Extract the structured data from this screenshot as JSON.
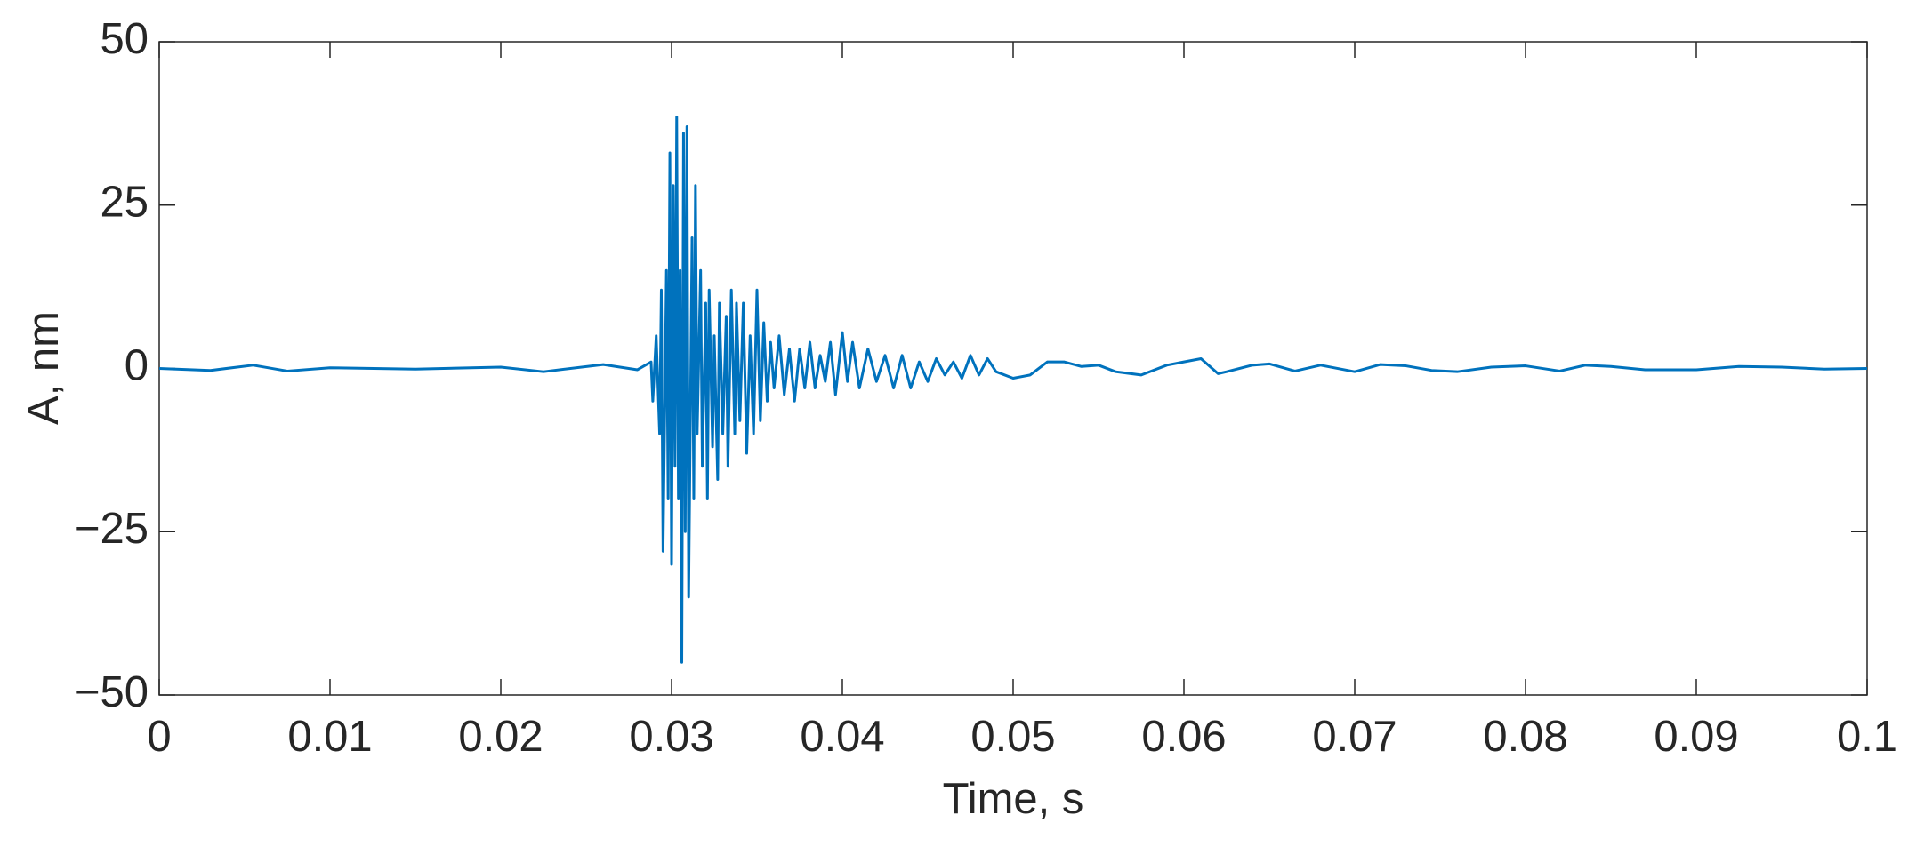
{
  "chart_data": {
    "type": "line",
    "x_label": "Time, s",
    "y_label": "A, nm",
    "x": [
      0,
      0.003,
      0.0055,
      0.0075,
      0.01,
      0.015,
      0.02,
      0.0225,
      0.026,
      0.028,
      0.0288,
      0.0289,
      0.0291,
      0.0293,
      0.0294,
      0.0295,
      0.0297,
      0.0298,
      0.0299,
      0.03,
      0.0301,
      0.0302,
      0.0303,
      0.0304,
      0.0305,
      0.0306,
      0.0307,
      0.0308,
      0.0309,
      0.031,
      0.0312,
      0.0313,
      0.0314,
      0.0315,
      0.0317,
      0.0318,
      0.032,
      0.0321,
      0.0322,
      0.0324,
      0.0325,
      0.0327,
      0.0328,
      0.033,
      0.0332,
      0.0333,
      0.0335,
      0.0337,
      0.0338,
      0.034,
      0.0342,
      0.0344,
      0.0346,
      0.0348,
      0.035,
      0.0352,
      0.0354,
      0.0356,
      0.0358,
      0.036,
      0.0363,
      0.0366,
      0.0369,
      0.0372,
      0.0375,
      0.0378,
      0.0381,
      0.0384,
      0.0387,
      0.039,
      0.0393,
      0.0396,
      0.04,
      0.0403,
      0.0406,
      0.041,
      0.0415,
      0.042,
      0.0425,
      0.043,
      0.0435,
      0.044,
      0.0445,
      0.045,
      0.0455,
      0.046,
      0.0465,
      0.047,
      0.0475,
      0.048,
      0.0485,
      0.049,
      0.05,
      0.051,
      0.052,
      0.053,
      0.054,
      0.055,
      0.056,
      0.0575,
      0.059,
      0.06,
      0.061,
      0.062,
      0.0625,
      0.064,
      0.065,
      0.0665,
      0.068,
      0.07,
      0.0715,
      0.073,
      0.0745,
      0.076,
      0.078,
      0.08,
      0.082,
      0.0835,
      0.085,
      0.087,
      0.09,
      0.0925,
      0.095,
      0.0975,
      0.1
    ],
    "series": [
      {
        "name": "A",
        "color": "#0072bd",
        "values": [
          0,
          -0.3,
          0.5,
          -0.4,
          0.1,
          -0.1,
          0.2,
          -0.5,
          0.6,
          -0.2,
          1,
          -5,
          5,
          -10,
          12,
          -28,
          15,
          -20,
          33,
          -30,
          28,
          -15,
          38.5,
          -20,
          15,
          -45,
          36,
          -25,
          37,
          -35,
          20,
          -20,
          28,
          -10,
          15,
          -15,
          10,
          -20,
          12,
          -12,
          5,
          -17,
          10,
          -10,
          8,
          -15,
          12,
          -10,
          10,
          -8,
          10,
          -13,
          5,
          -10,
          12,
          -8,
          7,
          -5,
          4,
          -3,
          5,
          -4,
          3,
          -5,
          3,
          -3,
          4,
          -3,
          2,
          -2,
          4,
          -4,
          5.5,
          -2,
          4,
          -3,
          3,
          -2,
          2,
          -3,
          2,
          -3,
          1,
          -2,
          1.5,
          -1,
          1,
          -1.5,
          2,
          -1,
          1.5,
          -0.5,
          -1.5,
          -1,
          1,
          1,
          0.3,
          0.5,
          -0.5,
          -1,
          0.5,
          1,
          1.5,
          -0.8,
          -0.5,
          0.5,
          0.7,
          -0.4,
          0.5,
          -0.5,
          0.6,
          0.4,
          -0.3,
          -0.5,
          0.2,
          0.4,
          -0.4,
          0.5,
          0.3,
          -0.2,
          -0.2,
          0.3,
          0.2,
          -0.1,
          0
        ]
      }
    ],
    "xlim": [
      0,
      0.1
    ],
    "ylim": [
      -50,
      50
    ],
    "xticks": [
      0,
      0.01,
      0.02,
      0.03,
      0.04,
      0.05,
      0.06,
      0.07,
      0.08,
      0.09,
      0.1
    ],
    "yticks": [
      {
        "value": -50,
        "label": "−50"
      },
      {
        "value": -25,
        "label": "−25"
      },
      0,
      25,
      50
    ]
  }
}
